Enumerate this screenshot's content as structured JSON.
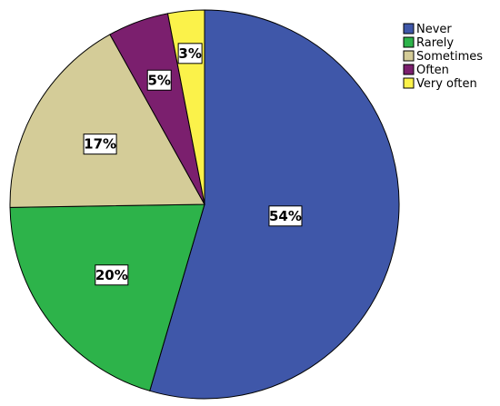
{
  "chart_data": {
    "type": "pie",
    "title": "",
    "legend_position": "top-right",
    "start_angle": "12 o'clock",
    "direction": "clockwise",
    "slices": [
      {
        "name": "Never",
        "value": 54,
        "label": "54%",
        "color": "#3f57a9"
      },
      {
        "name": "Rarely",
        "value": 20,
        "label": "20%",
        "color": "#2db34a"
      },
      {
        "name": "Sometimes",
        "value": 17,
        "label": "17%",
        "color": "#d4cc98"
      },
      {
        "name": "Often",
        "value": 5,
        "label": "5%",
        "color": "#7b1f6e"
      },
      {
        "name": "Very often",
        "value": 3,
        "label": "3%",
        "color": "#fbf24a"
      }
    ]
  }
}
